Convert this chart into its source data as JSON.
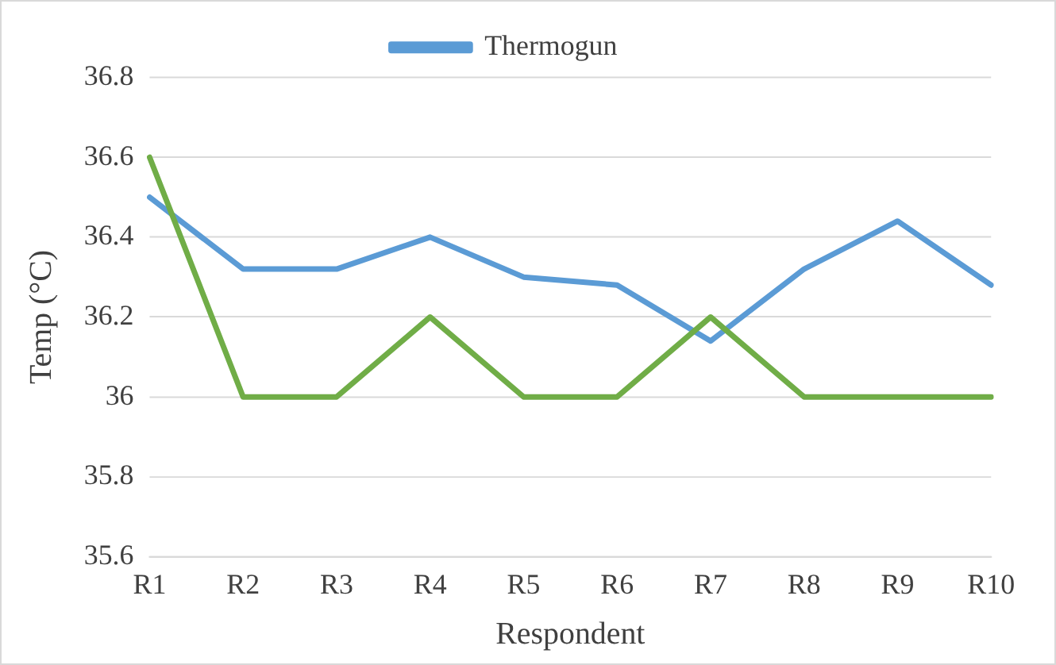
{
  "chart_data": {
    "type": "line",
    "xlabel": "Respondent",
    "ylabel": "Temp (°C)",
    "categories": [
      "R1",
      "R2",
      "R3",
      "R4",
      "R5",
      "R6",
      "R7",
      "R8",
      "R9",
      "R10"
    ],
    "series": [
      {
        "color": "#70ad47",
        "values": [
          36.6,
          36.0,
          36.0,
          36.2,
          36.0,
          36.0,
          36.2,
          36.0,
          36.0,
          36.0
        ]
      },
      {
        "name": "Thermogun",
        "color": "#5b9bd5",
        "values": [
          36.5,
          36.32,
          36.32,
          36.4,
          36.3,
          36.28,
          36.14,
          36.32,
          36.44,
          36.28
        ]
      }
    ],
    "ylim": [
      35.6,
      36.8
    ],
    "yticks": [
      35.6,
      35.8,
      36,
      36.2,
      36.4,
      36.6,
      36.8
    ],
    "grid": "y",
    "legend": "top",
    "marker": "none",
    "line_style": "solid"
  }
}
